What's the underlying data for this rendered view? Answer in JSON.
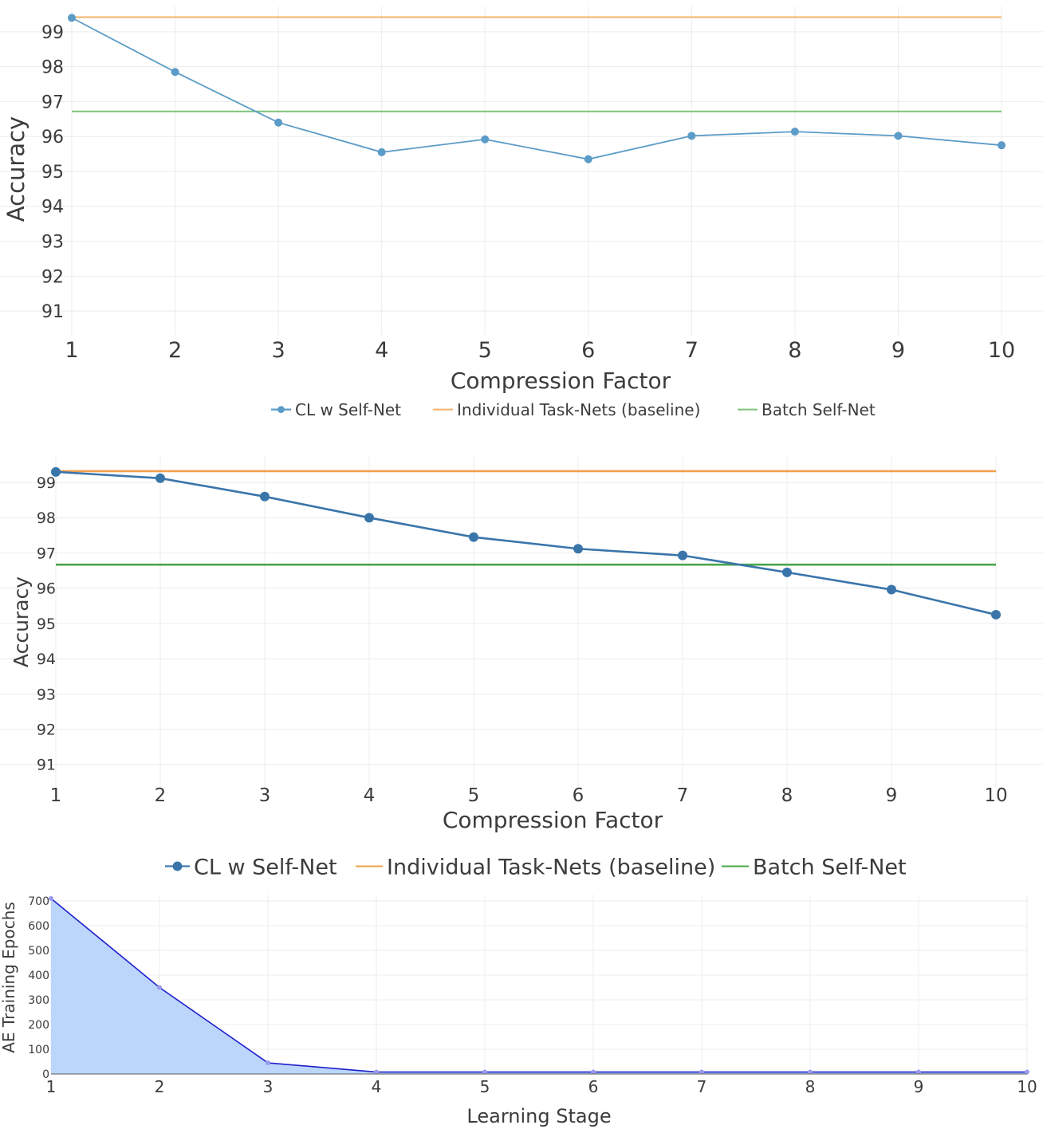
{
  "chart_data": [
    {
      "type": "line",
      "xlabel": "Compression Factor",
      "ylabel": "Accuracy",
      "x": [
        1,
        2,
        3,
        4,
        5,
        6,
        7,
        8,
        9,
        10
      ],
      "x_tick_labels": [
        "1",
        "2",
        "3",
        "4",
        "5",
        "6",
        "7",
        "8",
        "9",
        "10"
      ],
      "y_tick_labels": [
        "91",
        "92",
        "93",
        "94",
        "95",
        "96",
        "97",
        "98",
        "99"
      ],
      "ylim": [
        90.5,
        99.5
      ],
      "series": [
        {
          "name": "CL w Self-Net",
          "values": [
            99.4,
            97.85,
            96.4,
            95.55,
            95.92,
            95.35,
            96.02,
            96.14,
            96.02,
            95.75
          ],
          "color": "#5b9bc7",
          "mode": "lines+markers"
        },
        {
          "name": "Individual Task-Nets (baseline)",
          "values": [
            99.42,
            99.42,
            99.42,
            99.42,
            99.42,
            99.42,
            99.42,
            99.42,
            99.42,
            99.42
          ],
          "color": "#f5b26b",
          "mode": "lines"
        },
        {
          "name": "Batch Self-Net",
          "values": [
            96.72,
            96.72,
            96.72,
            96.72,
            96.72,
            96.72,
            96.72,
            96.72,
            96.72,
            96.72
          ],
          "color": "#7cc47a",
          "mode": "lines"
        }
      ],
      "grid": true,
      "legend_position": "bottom"
    },
    {
      "type": "line",
      "xlabel": "Compression Factor",
      "ylabel": "Accuracy",
      "x": [
        1,
        2,
        3,
        4,
        5,
        6,
        7,
        8,
        9,
        10
      ],
      "x_tick_labels": [
        "1",
        "2",
        "3",
        "4",
        "5",
        "6",
        "7",
        "8",
        "9",
        "10"
      ],
      "y_tick_labels": [
        "91",
        "92",
        "93",
        "94",
        "95",
        "96",
        "97",
        "98",
        "99"
      ],
      "ylim": [
        90.5,
        99.5
      ],
      "series": [
        {
          "name": "CL w Self-Net",
          "values": [
            99.3,
            99.12,
            98.6,
            98.0,
            97.45,
            97.12,
            96.93,
            96.45,
            95.96,
            95.25
          ],
          "color": "#3a75aa",
          "mode": "lines+markers"
        },
        {
          "name": "Individual  Task-Nets (baseline)",
          "values": [
            99.32,
            99.32,
            99.32,
            99.32,
            99.32,
            99.32,
            99.32,
            99.32,
            99.32,
            99.32
          ],
          "color": "#f0a04b",
          "mode": "lines"
        },
        {
          "name": "Batch Self-Net",
          "values": [
            96.67,
            96.67,
            96.67,
            96.67,
            96.67,
            96.67,
            96.67,
            96.67,
            96.67,
            96.67
          ],
          "color": "#4aa54a",
          "mode": "lines"
        }
      ],
      "grid": true,
      "legend_position": "bottom"
    },
    {
      "type": "area",
      "xlabel": "Learning Stage",
      "ylabel": "AE Training Epochs",
      "x": [
        1,
        2,
        3,
        4,
        5,
        6,
        7,
        8,
        9,
        10
      ],
      "x_tick_labels": [
        "1",
        "2",
        "3",
        "4",
        "5",
        "6",
        "7",
        "8",
        "9",
        "10"
      ],
      "y_tick_labels": [
        "0",
        "100",
        "200",
        "300",
        "400",
        "500",
        "600",
        "700"
      ],
      "ylim": [
        0,
        700
      ],
      "series": [
        {
          "name": "AE Training Epochs",
          "values": [
            710,
            350,
            45,
            8,
            8,
            8,
            8,
            8,
            8,
            8
          ],
          "color": "#1f1fcc",
          "fill": "#bcd6fb",
          "mode": "lines+markers"
        }
      ],
      "grid": true
    }
  ]
}
